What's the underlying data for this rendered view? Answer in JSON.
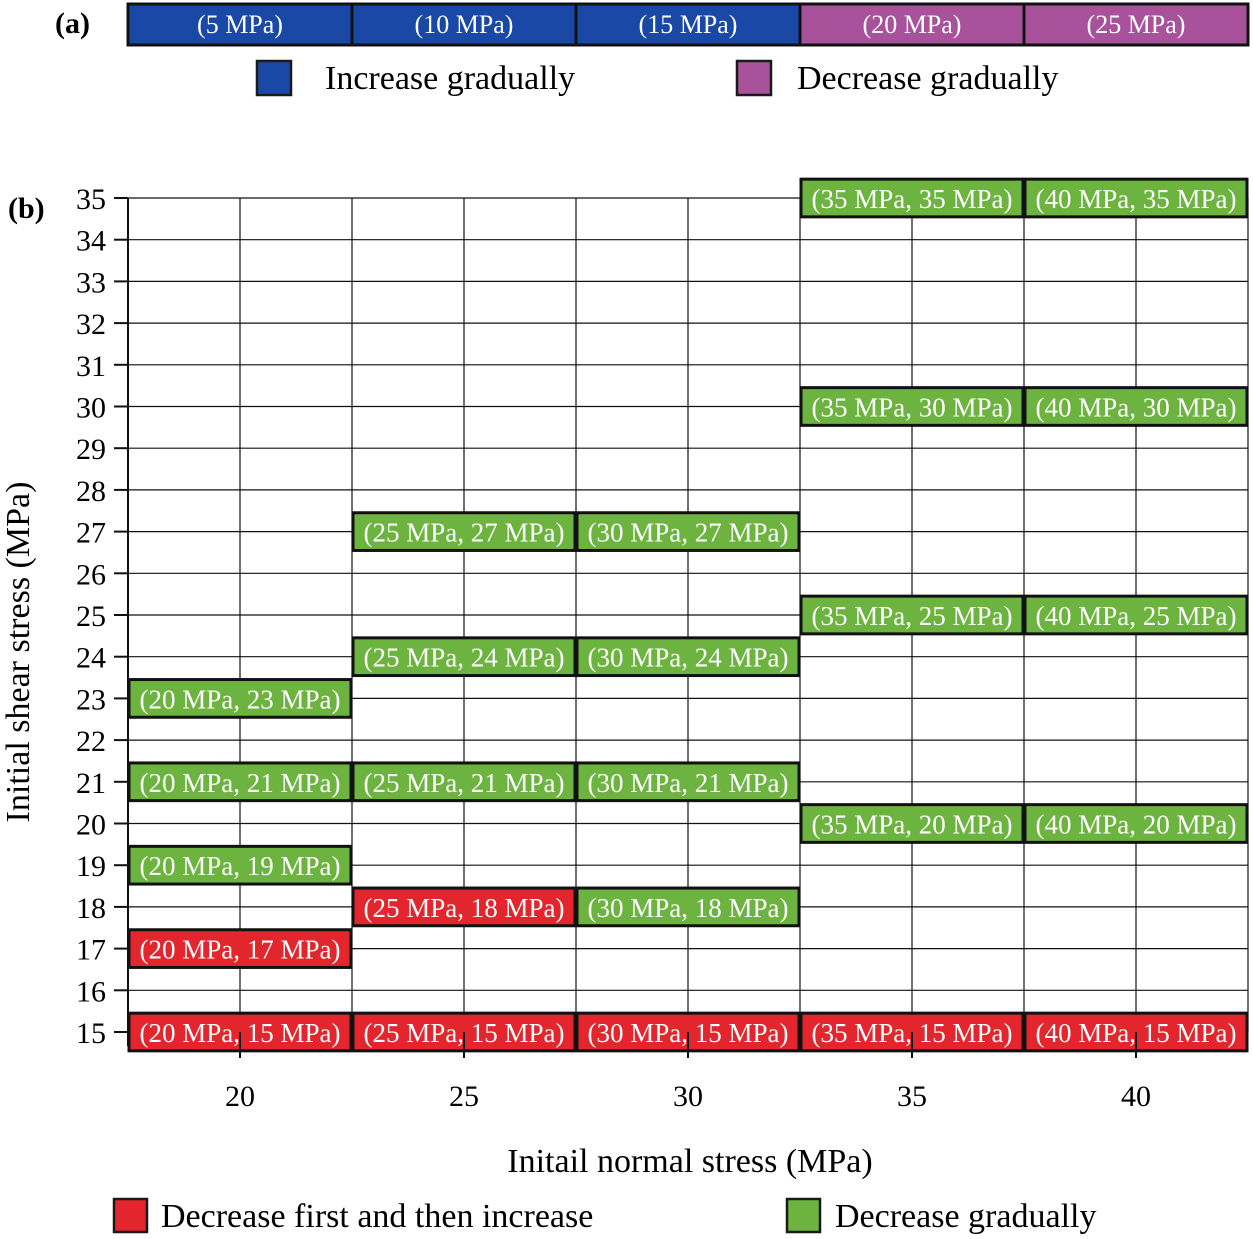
{
  "chart_data": [
    {
      "type": "table",
      "panel_label": "(a)",
      "cells": [
        {
          "label": "(5 MPa)",
          "category": "increase"
        },
        {
          "label": "(10 MPa)",
          "category": "increase"
        },
        {
          "label": "(15 MPa)",
          "category": "increase"
        },
        {
          "label": "(20 MPa)",
          "category": "decrease"
        },
        {
          "label": "(25 MPa)",
          "category": "decrease"
        }
      ],
      "legend": [
        {
          "key": "increase",
          "label": "Increase gradually",
          "color": "#1a48a6"
        },
        {
          "key": "decrease",
          "label": "Decrease gradually",
          "color": "#a8529c"
        }
      ]
    },
    {
      "type": "heatmap",
      "panel_label": "(b)",
      "xlabel": "Initail normal stress (MPa)",
      "ylabel": "Initial shear stress (MPa)",
      "xlim": [
        17.5,
        42.5
      ],
      "ylim": [
        15,
        35
      ],
      "xticks": [
        20,
        25,
        30,
        35,
        40
      ],
      "yticks": [
        15,
        16,
        17,
        18,
        19,
        20,
        21,
        22,
        23,
        24,
        25,
        26,
        27,
        28,
        29,
        30,
        31,
        32,
        33,
        34,
        35
      ],
      "grid": true,
      "cells": [
        {
          "x": 35,
          "y": 35,
          "label": "(35 MPa, 35 MPa)",
          "category": "decrease"
        },
        {
          "x": 40,
          "y": 35,
          "label": "(40 MPa, 35 MPa)",
          "category": "decrease"
        },
        {
          "x": 35,
          "y": 30,
          "label": "(35 MPa, 30 MPa)",
          "category": "decrease"
        },
        {
          "x": 40,
          "y": 30,
          "label": "(40 MPa, 30 MPa)",
          "category": "decrease"
        },
        {
          "x": 25,
          "y": 27,
          "label": "(25 MPa, 27 MPa)",
          "category": "decrease"
        },
        {
          "x": 30,
          "y": 27,
          "label": "(30 MPa, 27 MPa)",
          "category": "decrease"
        },
        {
          "x": 35,
          "y": 25,
          "label": "(35 MPa, 25 MPa)",
          "category": "decrease"
        },
        {
          "x": 40,
          "y": 25,
          "label": "(40 MPa, 25 MPa)",
          "category": "decrease"
        },
        {
          "x": 25,
          "y": 24,
          "label": "(25 MPa, 24 MPa)",
          "category": "decrease"
        },
        {
          "x": 30,
          "y": 24,
          "label": "(30 MPa, 24 MPa)",
          "category": "decrease"
        },
        {
          "x": 20,
          "y": 23,
          "label": "(20 MPa, 23 MPa)",
          "category": "decrease"
        },
        {
          "x": 20,
          "y": 21,
          "label": "(20 MPa, 21 MPa)",
          "category": "decrease"
        },
        {
          "x": 25,
          "y": 21,
          "label": "(25 MPa, 21 MPa)",
          "category": "decrease"
        },
        {
          "x": 30,
          "y": 21,
          "label": "(30 MPa, 21 MPa)",
          "category": "decrease"
        },
        {
          "x": 35,
          "y": 20,
          "label": "(35 MPa, 20 MPa)",
          "category": "decrease"
        },
        {
          "x": 40,
          "y": 20,
          "label": "(40 MPa, 20 MPa)",
          "category": "decrease"
        },
        {
          "x": 20,
          "y": 19,
          "label": "(20 MPa, 19 MPa)",
          "category": "decrease"
        },
        {
          "x": 25,
          "y": 18,
          "label": "(25 MPa, 18 MPa)",
          "category": "first_decrease_then_increase"
        },
        {
          "x": 30,
          "y": 18,
          "label": "(30 MPa, 18 MPa)",
          "category": "decrease"
        },
        {
          "x": 20,
          "y": 17,
          "label": "(20 MPa, 17 MPa)",
          "category": "first_decrease_then_increase"
        },
        {
          "x": 20,
          "y": 15,
          "label": "(20 MPa, 15 MPa)",
          "category": "first_decrease_then_increase"
        },
        {
          "x": 25,
          "y": 15,
          "label": "(25 MPa, 15 MPa)",
          "category": "first_decrease_then_increase"
        },
        {
          "x": 30,
          "y": 15,
          "label": "(30 MPa, 15 MPa)",
          "category": "first_decrease_then_increase"
        },
        {
          "x": 35,
          "y": 15,
          "label": "(35 MPa, 15 MPa)",
          "category": "first_decrease_then_increase"
        },
        {
          "x": 40,
          "y": 15,
          "label": "(40 MPa, 15 MPa)",
          "category": "first_decrease_then_increase"
        }
      ],
      "legend": [
        {
          "key": "first_decrease_then_increase",
          "label": "Decrease first and then increase",
          "color": "#e3262d"
        },
        {
          "key": "decrease",
          "label": "Decrease gradually",
          "color": "#6cb43f"
        }
      ]
    }
  ]
}
